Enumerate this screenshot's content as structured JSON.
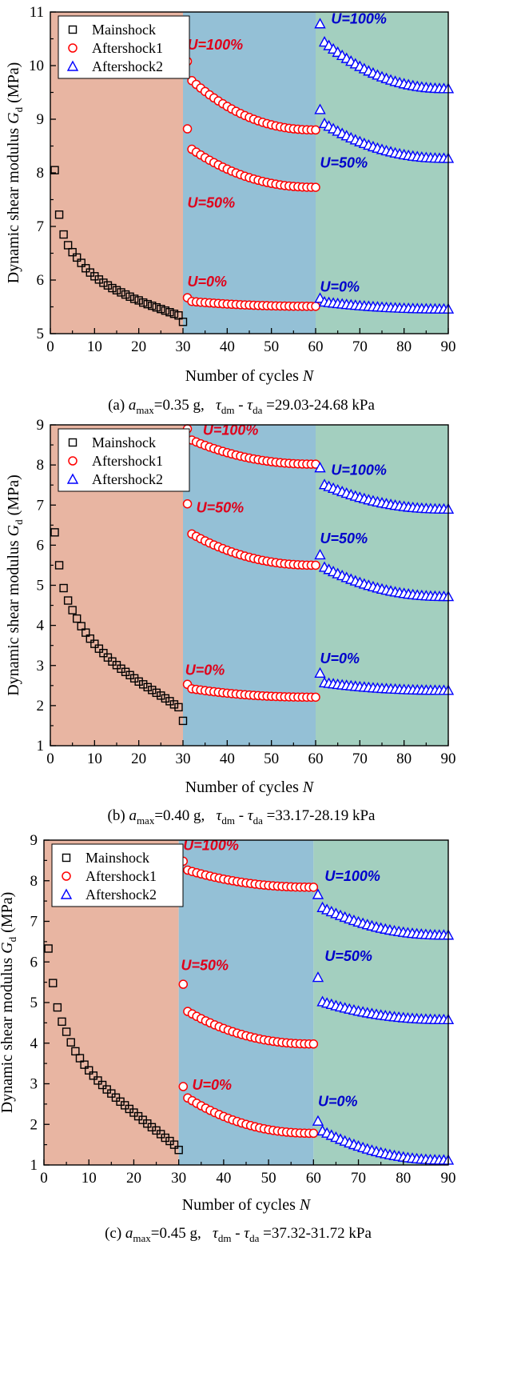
{
  "colors": {
    "mainshock_region": "#e8b5a2",
    "aftershock1_region": "#94c0d6",
    "aftershock2_region": "#a3cfbf",
    "mainshock": "#000000",
    "aftershock1": "#ff0000",
    "aftershock2": "#0000ff",
    "annotation_red": "#e0001a",
    "annotation_blue": "#0000cc"
  },
  "chart_data": [
    {
      "type": "scatter",
      "xlabel": "Number of cycles N",
      "ylabel": "Dynamic shear modulus Gd (MPa)",
      "xlim": [
        0,
        90
      ],
      "ylim": [
        5,
        11
      ],
      "xticks": [
        "0",
        "10",
        "20",
        "30",
        "40",
        "50",
        "60",
        "70",
        "80",
        "90"
      ],
      "yticks": [
        "5",
        "6",
        "7",
        "8",
        "9",
        "10",
        "11"
      ],
      "legend": [
        "Mainshock",
        "Aftershock1",
        "Aftershock2"
      ],
      "legend_position": "top-left",
      "caption": "(a) amax=0.35 g,   τdm - τda =29.03-24.68 kPa",
      "series": [
        {
          "name": "Mainshock",
          "marker": "square",
          "x_start": 1,
          "x_end": 30,
          "values": [
            8.05,
            7.22,
            6.85,
            6.65,
            6.52,
            6.42,
            6.32,
            6.22,
            6.14,
            6.07,
            6.01,
            5.95,
            5.9,
            5.85,
            5.81,
            5.77,
            5.73,
            5.69,
            5.65,
            5.62,
            5.58,
            5.55,
            5.52,
            5.49,
            5.46,
            5.43,
            5.4,
            5.37,
            5.34,
            5.22
          ]
        },
        {
          "name": "Aftershock1",
          "label": "U=100%",
          "marker": "circle",
          "x_start": 31,
          "x_end": 60,
          "y_first": 10.08,
          "y_second": 9.72,
          "y_end": 8.8
        },
        {
          "name": "Aftershock1",
          "label": "U=50%",
          "marker": "circle",
          "x_start": 31,
          "x_end": 60,
          "y_first": 8.82,
          "y_second": 8.44,
          "y_end": 7.73
        },
        {
          "name": "Aftershock1",
          "label": "U=0%",
          "marker": "circle",
          "x_start": 31,
          "x_end": 60,
          "y_first": 5.67,
          "y_second": 5.6,
          "y_end": 5.51
        },
        {
          "name": "Aftershock2",
          "label": "U=100%",
          "marker": "triangle",
          "x_start": 61,
          "x_end": 90,
          "y_first": 10.78,
          "y_second": 10.44,
          "y_end": 9.57
        },
        {
          "name": "Aftershock2",
          "label": "U=50%",
          "marker": "triangle",
          "x_start": 61,
          "x_end": 90,
          "y_first": 9.18,
          "y_second": 8.92,
          "y_end": 8.27
        },
        {
          "name": "Aftershock2",
          "label": "U=0%",
          "marker": "triangle",
          "x_start": 61,
          "x_end": 90,
          "y_first": 5.66,
          "y_second": 5.59,
          "y_end": 5.46
        }
      ],
      "annotations": [
        {
          "text": "U=100%",
          "x": 31,
          "y": 10.3,
          "color": "red"
        },
        {
          "text": "U=50%",
          "x": 31,
          "y": 7.35,
          "color": "red"
        },
        {
          "text": "U=0%",
          "x": 31,
          "y": 5.88,
          "color": "red"
        },
        {
          "text": "U=100%",
          "x": 63.5,
          "y": 10.78,
          "color": "blue"
        },
        {
          "text": "U=50%",
          "x": 61,
          "y": 8.1,
          "color": "blue"
        },
        {
          "text": "U=0%",
          "x": 61,
          "y": 5.78,
          "color": "blue"
        }
      ]
    },
    {
      "type": "scatter",
      "xlabel": "Number of cycles N",
      "ylabel": "Dynamic shear modulus Gd (MPa)",
      "xlim": [
        0,
        90
      ],
      "ylim": [
        1,
        9
      ],
      "xticks": [
        "0",
        "10",
        "20",
        "30",
        "40",
        "50",
        "60",
        "70",
        "80",
        "90"
      ],
      "yticks": [
        "1",
        "2",
        "3",
        "4",
        "5",
        "6",
        "7",
        "8",
        "9"
      ],
      "legend": [
        "Mainshock",
        "Aftershock1",
        "Aftershock2"
      ],
      "legend_position": "top-left",
      "caption": "(b) amax=0.40 g,   τdm - τda =33.17-28.19 kPa",
      "series": [
        {
          "name": "Mainshock",
          "marker": "square",
          "x_start": 1,
          "x_end": 30,
          "values": [
            6.32,
            5.5,
            4.93,
            4.62,
            4.38,
            4.17,
            3.98,
            3.82,
            3.67,
            3.54,
            3.42,
            3.31,
            3.2,
            3.1,
            3.01,
            2.92,
            2.84,
            2.76,
            2.68,
            2.6,
            2.53,
            2.46,
            2.39,
            2.32,
            2.25,
            2.18,
            2.11,
            2.03,
            1.96,
            1.62
          ]
        },
        {
          "name": "Aftershock1",
          "label": "U=100%",
          "marker": "circle",
          "x_start": 31,
          "x_end": 60,
          "y_first": 8.9,
          "y_second": 8.62,
          "y_end": 8.02
        },
        {
          "name": "Aftershock1",
          "label": "U=50%",
          "marker": "circle",
          "x_start": 31,
          "x_end": 60,
          "y_first": 7.03,
          "y_second": 6.28,
          "y_end": 5.5
        },
        {
          "name": "Aftershock1",
          "label": "U=0%",
          "marker": "circle",
          "x_start": 31,
          "x_end": 60,
          "y_first": 2.53,
          "y_second": 2.42,
          "y_end": 2.21
        },
        {
          "name": "Aftershock2",
          "label": "U=100%",
          "marker": "triangle",
          "x_start": 61,
          "x_end": 90,
          "y_first": 7.93,
          "y_second": 7.51,
          "y_end": 6.9
        },
        {
          "name": "Aftershock2",
          "label": "U=50%",
          "marker": "triangle",
          "x_start": 61,
          "x_end": 90,
          "y_first": 5.76,
          "y_second": 5.45,
          "y_end": 4.72
        },
        {
          "name": "Aftershock2",
          "label": "U=0%",
          "marker": "triangle",
          "x_start": 61,
          "x_end": 90,
          "y_first": 2.81,
          "y_second": 2.57,
          "y_end": 2.38
        }
      ],
      "annotations": [
        {
          "text": "U=100%",
          "x": 34.5,
          "y": 8.75,
          "color": "red"
        },
        {
          "text": "U=50%",
          "x": 33,
          "y": 6.82,
          "color": "red"
        },
        {
          "text": "U=0%",
          "x": 30.5,
          "y": 2.77,
          "color": "red"
        },
        {
          "text": "U=100%",
          "x": 63.5,
          "y": 7.75,
          "color": "blue"
        },
        {
          "text": "U=50%",
          "x": 61,
          "y": 6.05,
          "color": "blue"
        },
        {
          "text": "U=0%",
          "x": 61,
          "y": 3.05,
          "color": "blue"
        }
      ]
    },
    {
      "type": "scatter",
      "xlabel": "Number of cycles N",
      "ylabel": "Dynamic shear modulus Gd (MPa)",
      "xlim": [
        0,
        90
      ],
      "ylim": [
        1,
        9
      ],
      "xticks": [
        "0",
        "10",
        "20",
        "30",
        "40",
        "50",
        "60",
        "70",
        "80",
        "90"
      ],
      "yticks": [
        "1",
        "2",
        "3",
        "4",
        "5",
        "6",
        "7",
        "8",
        "9"
      ],
      "legend": [
        "Mainshock",
        "Aftershock1",
        "Aftershock2"
      ],
      "legend_position": "top-left",
      "caption": "(c) amax=0.45 g,   τdm - τda =37.32-31.72 kPa",
      "series": [
        {
          "name": "Mainshock",
          "marker": "square",
          "x_start": 1,
          "x_end": 30,
          "values": [
            6.33,
            5.48,
            4.88,
            4.53,
            4.28,
            4.02,
            3.8,
            3.63,
            3.47,
            3.33,
            3.2,
            3.08,
            2.97,
            2.86,
            2.76,
            2.66,
            2.56,
            2.47,
            2.38,
            2.29,
            2.2,
            2.11,
            2.02,
            1.93,
            1.85,
            1.76,
            1.67,
            1.59,
            1.5,
            1.37
          ]
        },
        {
          "name": "Aftershock1",
          "label": "U=100%",
          "marker": "circle",
          "x_start": 31,
          "x_end": 60,
          "y_first": 8.48,
          "y_second": 8.26,
          "y_end": 7.84
        },
        {
          "name": "Aftershock1",
          "label": "U=50%",
          "marker": "circle",
          "x_start": 31,
          "x_end": 60,
          "y_first": 5.45,
          "y_second": 4.78,
          "y_end": 3.98
        },
        {
          "name": "Aftershock1",
          "label": "U=0%",
          "marker": "circle",
          "x_start": 31,
          "x_end": 60,
          "y_first": 2.93,
          "y_second": 2.65,
          "y_end": 1.78
        },
        {
          "name": "Aftershock2",
          "label": "U=100%",
          "marker": "triangle",
          "x_start": 61,
          "x_end": 90,
          "y_first": 7.66,
          "y_second": 7.34,
          "y_end": 6.66
        },
        {
          "name": "Aftershock2",
          "label": "U=50%",
          "marker": "triangle",
          "x_start": 61,
          "x_end": 90,
          "y_first": 5.62,
          "y_second": 5.02,
          "y_end": 4.58
        },
        {
          "name": "Aftershock2",
          "label": "U=0%",
          "marker": "triangle",
          "x_start": 61,
          "x_end": 90,
          "y_first": 2.08,
          "y_second": 1.84,
          "y_end": 1.12
        }
      ],
      "annotations": [
        {
          "text": "U=100%",
          "x": 31,
          "y": 8.75,
          "color": "red"
        },
        {
          "text": "U=50%",
          "x": 30.5,
          "y": 5.8,
          "color": "red"
        },
        {
          "text": "U=0%",
          "x": 33,
          "y": 2.85,
          "color": "red"
        },
        {
          "text": "U=100%",
          "x": 62.5,
          "y": 8.0,
          "color": "blue"
        },
        {
          "text": "U=50%",
          "x": 62.5,
          "y": 6.02,
          "color": "blue"
        },
        {
          "text": "U=0%",
          "x": 61,
          "y": 2.45,
          "color": "blue"
        }
      ]
    }
  ]
}
